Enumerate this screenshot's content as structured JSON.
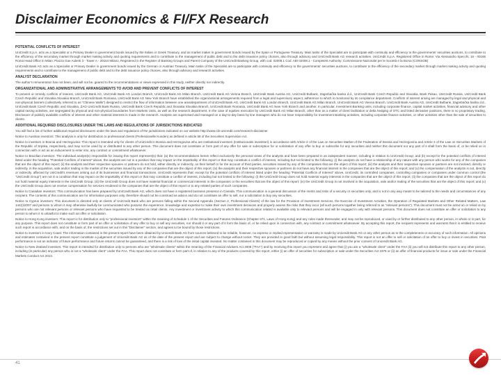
{
  "title": "Disclaimer Economics & FI/FX Research",
  "pageNumber": "41",
  "logo": {
    "bg": "#c81e1e",
    "arrow": "#ffffff"
  },
  "sections": [
    {
      "head": "POTENTIAL CONFLICTS OF INTEREST",
      "paras": [
        "UniCredit S.p.A. acts as a Specialist or a Primary Dealer in government bonds issued by the Italian or Greek Treasury, and as market maker in government bonds issued by the Spain or Portuguese Treasury. Main tasks of the Specialist are to participate with continuity and efficiency to the governments' securities auctions, to contribute to the efficiency of the secondary market through market making activity and quoting requirements and to contribute to the management of public debt and to the debt issuance policy choices, also through advisory and UniCredit Bank AG research activities. UniCredit S.p.A. Registered Office in Rome: Via Alessandro Specchi, 16 - 00186 Roma Head Office in Milan: Piazza Gae Aulenti 3 - Tower A - 20154 Milano, Registered in the Register of Banking Groups and Parent Company of the UniCredit Banking Group, with cod. 02008.1 Cod. ABI 02008.1 - Competent Authority: Commissione Nazionale per le Società e la Borsa (CONSOB)",
        "UniCredit Bank AG acts as a Specialist or Primary Dealer in government bonds issued by the German or Austrian Treasury. Main tasks of the Specialist are to participate with continuity and efficiency to the governments' securities auctions, to contribute to the efficiency of the secondary market through market making activity and quoting requirements and to contribute to the management of public debt and to the debt issuance policy choices, also through advisory and research activities."
      ]
    },
    {
      "head": "ANALYST DECLARATION",
      "paras": [
        "The author's remuneration has not been, and will not be, geared to the recommendations or views expressed in this study, neither directly nor indirectly."
      ]
    },
    {
      "head": "ORGANIZATIONAL AND ADMINISTRATIVE ARRANGEMENTS TO AVOID AND PREVENT CONFLICTS OF INTEREST",
      "paras": [
        "To prevent or remedy conflicts of interest, UniCredit Bank AG, UniCredit Bank AG London Branch, UniCredit Bank AG Milan Branch, UniCredit Bank AG Vienna Branch, UniCredit Bank Austria AG, UniCredit Bulbank, Zagrebačka banka d.d., UniCredit Bank Czech Republic and Slovakia, Bank Pekao, UniCredit Russia, UniCredit Bank Czech Republic and Slovakia Slovakia Branch, UniCredit Bank Romania, UniCredit Bank AG New York Branch have established the organizational arrangements required from a legal and supervisory aspect, adherence to which is monitored by its compliance department. Conflicts of interest arising are managed by legal and physical and non-physical barriers (collectively referred to as \"Chinese Walls\") designed to restrict the flow of information between one area/department of UniCredit Bank AG, UniCredit Bank AG London Branch, UniCredit Bank AG Milan Branch, UniCredit Bank AG Vienna Branch, UniCredit Bank Austria AG, UniCredit Bulbank, Zagrebačka banka d.d., UniCredit Bank Czech Republic and Slovakia, ZAO UniCredit Bank Russia, UniCredit Bank Czech Republic and Slovakia Slovakia Branch, UniCredit Bank Romania, UniCredit Bank AG New York Branch and another. In particular, Investment Banking units, including corporate finance, capital market activities, financial advisory and other capital raising activities, are segregated by physical and non-physical boundaries from Markets Units, as well as the research department. In the case of equities execution by UniCredit Bank AG Milan Branch, other than as a matter of client facilitation or delta hedging of OTC and listed derivative positions, there is no proprietary trading. Disclosure of publicly available conflicts of interest and other material interests is made in the research. Analysts are supervised and managed on a day-to-day basis by line managers who do not have responsibility for Investment Banking activities, including corporate finance activities, or other activities other than the sale of securities to clients."
      ]
    },
    {
      "head": "ADDITIONAL REQUIRED DISCLOSURES UNDER THE LAWS AND REGULATIONS OF JURISDICTIONS INDICATED",
      "paras": [
        "You will find a list of further additional required disclosures under the laws and regulations of the jurisdictions indicated on our website  http://www.cib-unicredit.com/research-disclaimer.",
        "Notice to Austrian investors: This analysis is only for distribution to professional clients (Professionelle Kunden) as defined in article 58 of the Securities Supervision Act.",
        "Notice to investors in Bosnia and Herzegovina: This report is intended only for clients of UniCredit in Bosnia and Herzegovina who are institutional investors (Institucionalni investitori) in accordance with Article 2 of the Law on Securities Market of the Federation of Bosnia and Herzegovina and Article 2 of the Law on Securities Markets of the Republic of Srpska, respectively, and may not be used by or distributed to any other person. This document does not constitute or form part of any offer for sale or subscription for or solicitation of any offer to buy or subscribe for any securities and neither this document nor any part of it shall form the basis of, or be relied on in connection with or act as an inducement to enter into, any contract or commitment whatsoever.",
        "Notice to Brazilian investors: The individual analyst(s) responsible for issuing this report represent(s) that: (a) the recommendations herein reflect exclusively the personal views of the analysts and have been prepared in an independent manner, including in relation to UniCredit Group; and (b) except for the potential conflicts of interest listed under the heading \"Potential Conflicts of Interest\" above, the analysts are not in a position that may impact on the impartiality of this report or that may constitute a conflict of interest, including but not limited to the following: (i) the analysts do not have a relationship of any nature with any person who works for any of the companies that are the object of this report; (ii) the analysts and their respective spouses or partners do not hold, either directly or indirectly, on their behalf or for the account of third parties, securities issued by any of the companies that are the object of this report; (iii) the analysts and their respective spouses or partners are not involved, directly or indirectly, in the acquisition, sale and/or trading in the market of the securities issued by any of the companies that are the object of this report; (iv) the analysts and their respective spouses or partners do not have any financial interest in the companies that are the object of this report; and (v) the compensation of the analysts is not, directly or indirectly, affected by UniCredit's revenues arising out of its businesses and financial transactions. UniCredit represents that: except for the potential conflicts of interest listed under the heading \"Potential Conflicts of Interest\" above, UniCredit, its controlled companies, controlling companies or companies under common control (the \"UniCredit Group\") are not in a condition that may impact on the impartiality of this report or that may constitute a conflict of interest, including but not limited to the following: (i) the UniCredit Group does not hold material equity interests in the companies that are the object of this report; (ii) the companies that are the object of this report do not hold material equity interests in the UniCredit Group; (iii) the UniCredit Group does not have material financial or commercial interests in the companies or the securities that are the object of this report; (iv) the UniCredit Group is not involved in the acquisition, sale and/or trading of the securities that are the object of this report; and (v) the UniCredit Group does not receive compensation for services rendered to the companies that are the object of this report or to any related parties of such companies.",
        "Notice to Canadian investors: This communication has been prepared by UniCredit Bank AG, which does not have a registered business presence in Canada. This communication is a general discussion of the merits and risks of a security or securities only, and is not in any way meant to be tailored to the needs and circumstances of any recipient. The contents of this communication are for information purposes only, therefore should not be construed as advice and do not constitute an offer to sell, nor a solicitation to buy any securities.",
        "Notice to Cyprus investors: This document is directed only at clients of UniCredit Bank who are persons falling within the Second Appendix (Section 2, Professional Clients) of the law for the Provision of Investment Services, the Exercise of Investment Activities, the Operation of Regulated Markets and Other Related Matters, Law 144(I)/2007 and persons to whom it may otherwise lawfully be communicated who possess the experience, knowledge and expertise to make their own investment decisions and properly assess the risks that they incur (all such persons together being referred to as \"relevant persons\"). This document must not be acted on or relied on by persons who are not relevant persons or relevant persons who have requested to be treated as retail clients. Any investment or investment activity to which this communication related is available only to relevant persons and will be engaged in only with relevant persons. This document does not constitute an offer or solicitation to any person to whom it is unlawful to make such an offer or solicitation.",
        "Notice to Hong Kong investors: This report is for distribution only to \"professional investors\" within the meaning of Schedule 1 of the Securities and Futures Ordinance (Chapter 571, Laws of Hong Kong) and any rules made thereunder, and may not be reproduced, or used by or further distributed to any other person, in whole or in part, for any purpose. This report does not constitute or form part of an offer or solicitation of any offer to buy or sell any securities, nor should it or any part of it form the basis of, or be relied upon in connection with, any contract or commitment whatsoever. By accepting this report, the recipient represents and warrants that it is entitled to receive such report in accordance with, and on the basis of, the restrictions set out in this \"Disclaimer\" section, and agrees to be bound by those restrictions.",
        "Notice to investors in Ivory Coast: The information contained in the present report have been obtained by Unicredit Bank AG from sources believed to be reliable, however, no express or implied representation or warranty is made by Unicredit Bank AG or any other person as to the completeness or accuracy of such information. All opinions and estimates contained in the present report constitute a judgement of Unicredit Bank AG as of the date of the present report and are subject to change without notice. They are provided in good faith but without assuming legal responsibility. This report is not an offer to sell or solicitation of an offer to buy or invest in securities. Past performance is not an indicator of future performance and future returns cannot be guaranteed, and there is a risk of loss of the initial capital invested. No matter contained in this document may be reproduced or copied by any means without the prior consent of Unicredit Bank AG.",
        "Notice to New Zealand investors: This report is intended for distribution only to persons who are \"wholesale clients\" within the meaning of the Financial Advisers Act 2008 (\"FAA\") and by receiving this report you represent and agree that (i) you are a \"wholesale client\" under the FAA (ii) you will not distribute this report to any other person, including (in particular) any person who is not a \"wholesale client\" under the FAA. This report does not constitute or form part of, in relation to any of the products covered by this report, either (i) an offer of securities for subscription or sale under the Securities Act 1978 or (ii) an offer of financial products for issue or sale under the Financial Markets Conduct Act 2013."
      ]
    }
  ]
}
